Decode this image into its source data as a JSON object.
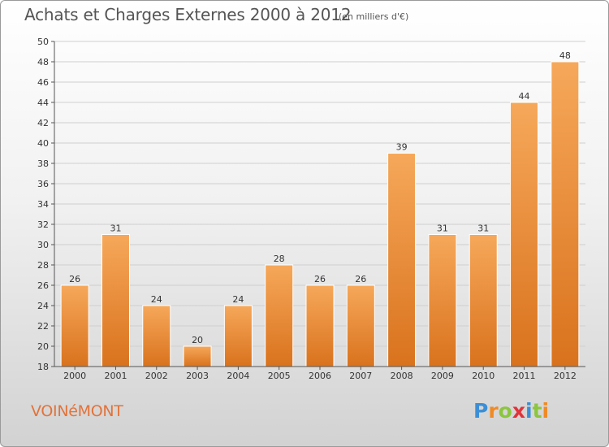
{
  "header": {
    "title": "Achats et Charges Externes 2000 à 2012",
    "subtitle": "(en milliers d'€)"
  },
  "footer": {
    "town": "VOINéMONT",
    "logo": {
      "letters": [
        "P",
        "r",
        "o",
        "x",
        "i",
        "t",
        "i"
      ],
      "colors": [
        "#3b8fd6",
        "#f08a24",
        "#8cc63f",
        "#e2333a",
        "#3b8fd6",
        "#8cc63f",
        "#f08a24"
      ]
    }
  },
  "colors": {
    "bar_light": "#f6a85a",
    "bar_dark": "#d9721d",
    "grid": "#cfcfcf",
    "axis": "#555555"
  },
  "chart_data": {
    "type": "bar",
    "categories": [
      "2000",
      "2001",
      "2002",
      "2003",
      "2004",
      "2005",
      "2006",
      "2007",
      "2008",
      "2009",
      "2010",
      "2011",
      "2012"
    ],
    "values": [
      26,
      31,
      24,
      20,
      24,
      28,
      26,
      26,
      39,
      31,
      31,
      44,
      48
    ],
    "title": "Achats et Charges Externes 2000 à 2012",
    "subtitle": "(en milliers d'€)",
    "xlabel": "",
    "ylabel": "",
    "ylim": [
      18,
      50
    ],
    "yticks": [
      18,
      20,
      22,
      24,
      26,
      28,
      30,
      32,
      34,
      36,
      38,
      40,
      42,
      44,
      46,
      48,
      50
    ],
    "grid": true,
    "legend": "none"
  }
}
